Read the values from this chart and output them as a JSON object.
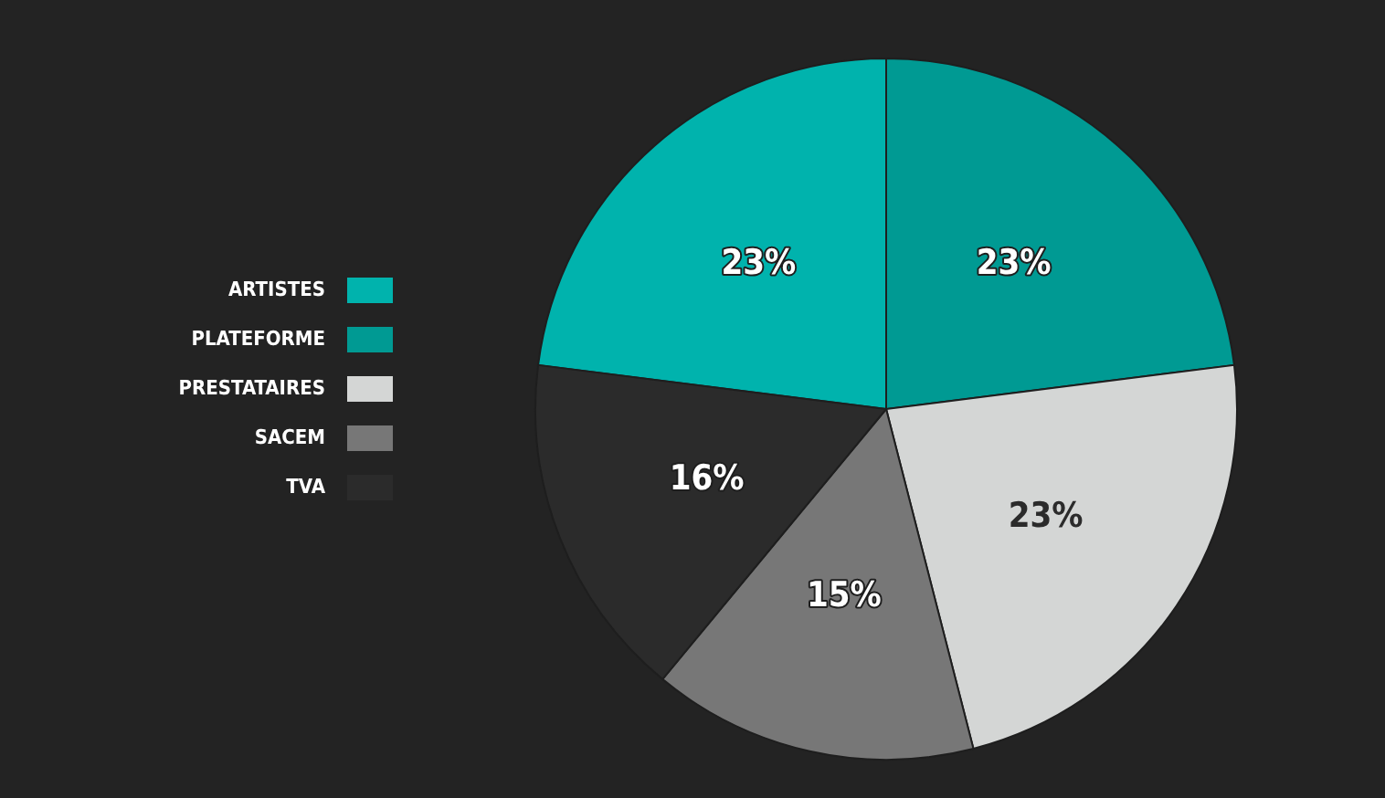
{
  "chart_data": {
    "type": "pie",
    "categories": [
      "ARTISTES",
      "PLATEFORME",
      "PRESTATAIRES",
      "SACEM",
      "TVA"
    ],
    "values": [
      23,
      23,
      23,
      15,
      16
    ],
    "colors": [
      "#00b3ad",
      "#009a93",
      "#d4d6d5",
      "#777777",
      "#2b2b2b"
    ],
    "value_labels": [
      "23%",
      "23%",
      "23%",
      "15%",
      "16%"
    ],
    "legend": "left"
  }
}
